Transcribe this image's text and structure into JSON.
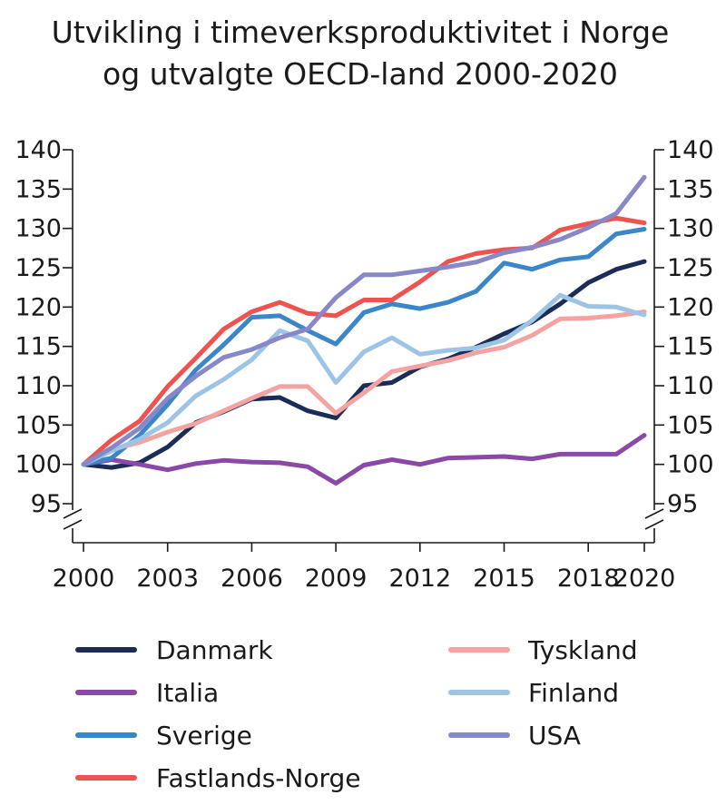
{
  "chart_data": {
    "type": "line",
    "title": [
      "Utvikling i timeverksproduktivitet i Norge",
      "og utvalgte OECD-land 2000-2020"
    ],
    "xlabel": "",
    "ylabel": "",
    "x": [
      2000,
      2001,
      2002,
      2003,
      2004,
      2005,
      2006,
      2007,
      2008,
      2009,
      2010,
      2011,
      2012,
      2013,
      2014,
      2015,
      2016,
      2017,
      2018,
      2019,
      2020
    ],
    "xticks": [
      "2000",
      "2003",
      "2006",
      "2009",
      "2012",
      "2015",
      "2018",
      "2020"
    ],
    "ylim": [
      95,
      140
    ],
    "yticks": [
      "95",
      "100",
      "105",
      "110",
      "115",
      "120",
      "125",
      "130",
      "135",
      "140"
    ],
    "axis_break": true,
    "series": [
      {
        "name": "Danmark",
        "color": "#1b2c57",
        "values": [
          100,
          99.6,
          100.2,
          102.2,
          105.3,
          106.7,
          108.3,
          108.5,
          106.8,
          105.9,
          110.0,
          110.4,
          112.4,
          113.4,
          114.9,
          116.6,
          118.1,
          120.4,
          123.1,
          124.8,
          125.8
        ]
      },
      {
        "name": "Italia",
        "color": "#8a49a6",
        "values": [
          100,
          100.6,
          100.0,
          99.3,
          100.1,
          100.5,
          100.3,
          100.2,
          99.7,
          97.6,
          99.9,
          100.6,
          100.0,
          100.8,
          100.9,
          101.0,
          100.7,
          101.3,
          101.3,
          101.3,
          103.7
        ]
      },
      {
        "name": "Sverige",
        "color": "#3a86c8",
        "values": [
          100,
          100.8,
          103.7,
          107.6,
          112.0,
          115.2,
          118.7,
          118.9,
          117.0,
          115.3,
          119.3,
          120.4,
          119.8,
          120.6,
          122.0,
          125.6,
          124.8,
          126.0,
          126.4,
          129.3,
          129.9
        ]
      },
      {
        "name": "Fastlands-Norge",
        "color": "#ef5350",
        "values": [
          100,
          103.1,
          105.5,
          109.9,
          113.5,
          117.2,
          119.4,
          120.6,
          119.2,
          118.9,
          120.9,
          120.9,
          123.2,
          125.8,
          126.8,
          127.3,
          127.5,
          129.8,
          130.6,
          131.3,
          130.7
        ]
      },
      {
        "name": "Tyskland",
        "color": "#f4a3a0",
        "values": [
          100,
          101.9,
          102.8,
          104.1,
          105.2,
          106.8,
          108.4,
          109.9,
          109.9,
          106.5,
          109.1,
          111.8,
          112.5,
          113.2,
          114.2,
          114.9,
          116.4,
          118.5,
          118.6,
          118.9,
          119.4
        ]
      },
      {
        "name": "Finland",
        "color": "#9dc3e6",
        "values": [
          100,
          101.7,
          103.2,
          105.3,
          108.7,
          110.8,
          113.3,
          117.0,
          115.7,
          110.4,
          114.3,
          116.1,
          114.0,
          114.5,
          114.8,
          115.8,
          118.3,
          121.5,
          120.1,
          120.0,
          119.0
        ]
      },
      {
        "name": "USA",
        "color": "#8888c8",
        "values": [
          100,
          102.1,
          104.6,
          108.4,
          111.2,
          113.6,
          114.6,
          116.1,
          117.2,
          121.2,
          124.1,
          124.1,
          124.6,
          125.1,
          125.7,
          126.9,
          127.6,
          128.6,
          130.1,
          131.9,
          136.5
        ]
      }
    ],
    "legend": {
      "placement": "bottom",
      "columns": 2
    }
  }
}
